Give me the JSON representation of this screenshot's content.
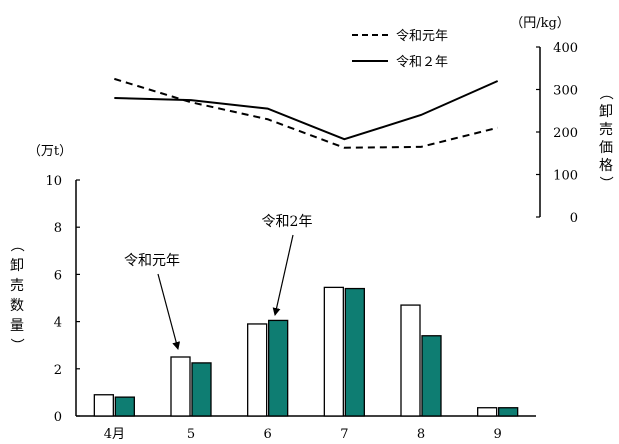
{
  "chart_data": [
    {
      "type": "line",
      "y_unit_label": "（円/kg）",
      "ylabel_chars": [
        "（",
        "卸",
        "売",
        "価",
        "格",
        "）"
      ],
      "ylim": [
        0,
        400
      ],
      "yticks": [
        0,
        100,
        200,
        300,
        400
      ],
      "categories": [
        "4月",
        "5",
        "6",
        "7",
        "8",
        "9"
      ],
      "legend_position": "top-center",
      "series": [
        {
          "name": "令和元年",
          "style": "dashed",
          "values": [
            325,
            270,
            230,
            163,
            165,
            210
          ]
        },
        {
          "name": "令和２年",
          "style": "solid",
          "values": [
            280,
            275,
            255,
            183,
            240,
            320
          ]
        }
      ]
    },
    {
      "type": "bar",
      "y_unit_label": "（万t）",
      "ylabel_chars": [
        "（",
        "卸",
        "売",
        "数",
        "量",
        "）"
      ],
      "ylim": [
        0,
        10
      ],
      "yticks": [
        0,
        2,
        4,
        6,
        8,
        10
      ],
      "categories": [
        "4月",
        "5",
        "6",
        "7",
        "8",
        "9"
      ],
      "series": [
        {
          "name": "令和元年",
          "color": "#ffffff",
          "values": [
            0.9,
            2.5,
            3.9,
            5.45,
            4.7,
            0.35
          ]
        },
        {
          "name": "令和２年",
          "color": "#0e7d72",
          "values": [
            0.8,
            2.25,
            4.05,
            5.4,
            3.4,
            0.35
          ]
        }
      ],
      "annotations": [
        {
          "text": "令和元年",
          "points_to": "令和元年 bar at 5"
        },
        {
          "text": "令和2年",
          "points_to": "令和２年 bar at 6"
        }
      ]
    }
  ]
}
